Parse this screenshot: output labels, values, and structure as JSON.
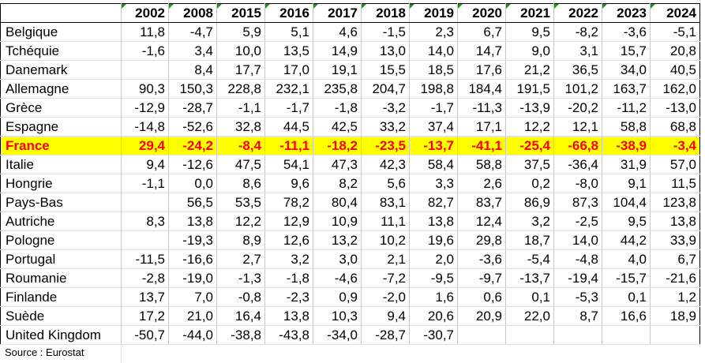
{
  "table": {
    "years": [
      "2002",
      "2008",
      "2015",
      "2016",
      "2017",
      "2018",
      "2019",
      "2020",
      "2021",
      "2022",
      "2023",
      "2024"
    ],
    "rows": [
      {
        "country": "Belgique",
        "values": [
          "11,8",
          "-4,7",
          "5,9",
          "5,1",
          "4,6",
          "-1,5",
          "2,3",
          "6,7",
          "9,5",
          "-8,2",
          "-3,6",
          "-5,1"
        ]
      },
      {
        "country": "Tchéquie",
        "values": [
          "-1,6",
          "3,4",
          "10,0",
          "13,5",
          "14,9",
          "13,0",
          "14,0",
          "14,7",
          "9,0",
          "3,1",
          "15,7",
          "20,8"
        ]
      },
      {
        "country": "Danemark",
        "values": [
          "",
          "8,4",
          "17,7",
          "17,0",
          "19,1",
          "15,5",
          "18,5",
          "17,6",
          "21,2",
          "36,5",
          "34,0",
          "40,5"
        ]
      },
      {
        "country": "Allemagne",
        "values": [
          "90,3",
          "150,3",
          "228,8",
          "232,1",
          "235,8",
          "204,7",
          "198,8",
          "184,4",
          "191,5",
          "101,2",
          "163,7",
          "162,0"
        ]
      },
      {
        "country": "Grèce",
        "values": [
          "-12,9",
          "-28,7",
          "-1,1",
          "-1,7",
          "-1,8",
          "-3,2",
          "-1,7",
          "-11,3",
          "-13,9",
          "-20,2",
          "-11,2",
          "-13,0"
        ]
      },
      {
        "country": "Espagne",
        "values": [
          "-14,8",
          "-52,6",
          "32,8",
          "44,5",
          "42,5",
          "33,2",
          "37,4",
          "17,1",
          "12,2",
          "12,1",
          "58,8",
          "68,8"
        ]
      },
      {
        "country": "France",
        "values": [
          "29,4",
          "-24,2",
          "-8,4",
          "-11,1",
          "-18,2",
          "-23,5",
          "-13,7",
          "-41,1",
          "-25,4",
          "-66,8",
          "-38,9",
          "-3,4"
        ],
        "highlight": true
      },
      {
        "country": "Italie",
        "values": [
          "9,4",
          "-12,6",
          "47,5",
          "54,1",
          "47,3",
          "42,3",
          "58,4",
          "58,8",
          "37,5",
          "-36,4",
          "31,9",
          "57,0"
        ]
      },
      {
        "country": "Hongrie",
        "values": [
          "-1,1",
          "0,0",
          "8,6",
          "9,6",
          "8,2",
          "5,6",
          "3,3",
          "2,6",
          "0,2",
          "-8,0",
          "9,1",
          "11,5"
        ]
      },
      {
        "country": "Pays-Bas",
        "values": [
          "",
          "56,5",
          "53,5",
          "78,2",
          "80,4",
          "83,1",
          "82,7",
          "83,7",
          "86,9",
          "87,3",
          "104,4",
          "123,8"
        ]
      },
      {
        "country": "Autriche",
        "values": [
          "8,3",
          "13,8",
          "12,2",
          "12,9",
          "10,9",
          "11,1",
          "13,8",
          "12,4",
          "3,2",
          "-2,5",
          "9,5",
          "13,8"
        ]
      },
      {
        "country": "Pologne",
        "values": [
          "",
          "-19,3",
          "8,9",
          "12,6",
          "13,2",
          "10,2",
          "19,6",
          "29,8",
          "18,7",
          "14,0",
          "44,2",
          "33,9"
        ]
      },
      {
        "country": "Portugal",
        "values": [
          "-11,5",
          "-16,6",
          "2,7",
          "3,2",
          "3,0",
          "2,1",
          "2,0",
          "-3,6",
          "-5,4",
          "-4,8",
          "4,0",
          "6,7"
        ]
      },
      {
        "country": "Roumanie",
        "values": [
          "-2,8",
          "-19,0",
          "-1,3",
          "-1,8",
          "-4,6",
          "-7,2",
          "-9,5",
          "-9,7",
          "-13,7",
          "-19,4",
          "-15,7",
          "-21,6"
        ]
      },
      {
        "country": "Finlande",
        "values": [
          "13,7",
          "7,0",
          "-0,8",
          "-2,3",
          "0,9",
          "-2,0",
          "1,6",
          "0,6",
          "0,1",
          "-5,3",
          "0,1",
          "1,2"
        ]
      },
      {
        "country": "Suède",
        "values": [
          "17,2",
          "21,0",
          "16,4",
          "13,8",
          "10,3",
          "9,4",
          "20,6",
          "20,9",
          "22,0",
          "8,7",
          "16,6",
          "18,9"
        ]
      },
      {
        "country": "United Kingdom",
        "values": [
          "-50,7",
          "-44,0",
          "-38,8",
          "-43,8",
          "-34,0",
          "-28,7",
          "-30,7",
          "",
          "",
          "",
          "",
          ""
        ]
      }
    ]
  },
  "source": "Source : Eurostat",
  "colors": {
    "highlight_bg": "#ffff00",
    "highlight_text": "#ff0000",
    "comment_marker": "#1e8c1e"
  }
}
